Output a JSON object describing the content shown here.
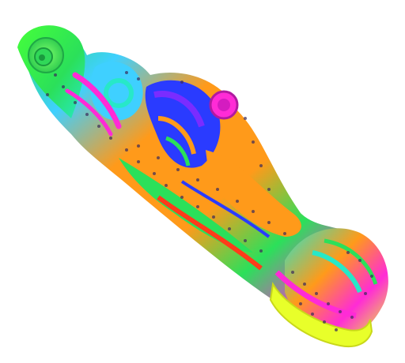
{
  "scene": {
    "subject": "carved-scroll-bracket-model",
    "background_color": "#ffffff",
    "palette": [
      "#2be05a",
      "#3fd0ff",
      "#7a2cff",
      "#2a3bff",
      "#ff2bd6",
      "#ff9a1a",
      "#ff3b1a",
      "#e8ff2a",
      "#27e8c8"
    ]
  }
}
